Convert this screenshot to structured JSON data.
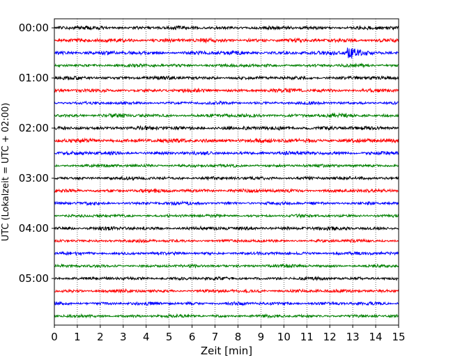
{
  "chart_data": {
    "type": "line",
    "title": "",
    "xlabel": "Zeit  [min]",
    "ylabel": "UTC (Lokalzeit = UTC + 02:00)",
    "xlim": [
      0,
      15
    ],
    "x_ticks": [
      0,
      1,
      2,
      3,
      4,
      5,
      6,
      7,
      8,
      9,
      10,
      11,
      12,
      13,
      14,
      15
    ],
    "x_tick_labels": [
      "0",
      "1",
      "2",
      "3",
      "4",
      "5",
      "6",
      "7",
      "8",
      "9",
      "10",
      "11",
      "12",
      "13",
      "14",
      "15"
    ],
    "y_tick_labels": [
      "00:00",
      "01:00",
      "02:00",
      "03:00",
      "04:00",
      "05:00"
    ],
    "trace_interval_minutes": 15,
    "grid": {
      "x": "dotted",
      "y": false
    },
    "colors_cycle": [
      "#000000",
      "#ff0000",
      "#0000ff",
      "#008000"
    ],
    "series": [
      {
        "start": "00:00",
        "color": "#000000",
        "amplitude": 0.35
      },
      {
        "start": "00:15",
        "color": "#ff0000",
        "amplitude": 0.4
      },
      {
        "start": "00:30",
        "color": "#0000ff",
        "amplitude": 0.38,
        "event": {
          "x": 12.8,
          "amplitude": 1.0
        }
      },
      {
        "start": "00:45",
        "color": "#008000",
        "amplitude": 0.32
      },
      {
        "start": "01:00",
        "color": "#000000",
        "amplitude": 0.35
      },
      {
        "start": "01:15",
        "color": "#ff0000",
        "amplitude": 0.36
      },
      {
        "start": "01:30",
        "color": "#0000ff",
        "amplitude": 0.3
      },
      {
        "start": "01:45",
        "color": "#008000",
        "amplitude": 0.36
      },
      {
        "start": "02:00",
        "color": "#000000",
        "amplitude": 0.38
      },
      {
        "start": "02:15",
        "color": "#ff0000",
        "amplitude": 0.42
      },
      {
        "start": "02:30",
        "color": "#0000ff",
        "amplitude": 0.36
      },
      {
        "start": "02:45",
        "color": "#008000",
        "amplitude": 0.3
      },
      {
        "start": "03:00",
        "color": "#000000",
        "amplitude": 0.34
      },
      {
        "start": "03:15",
        "color": "#ff0000",
        "amplitude": 0.34
      },
      {
        "start": "03:30",
        "color": "#0000ff",
        "amplitude": 0.32
      },
      {
        "start": "03:45",
        "color": "#008000",
        "amplitude": 0.3
      },
      {
        "start": "04:00",
        "color": "#000000",
        "amplitude": 0.36
      },
      {
        "start": "04:15",
        "color": "#ff0000",
        "amplitude": 0.3
      },
      {
        "start": "04:30",
        "color": "#0000ff",
        "amplitude": 0.32
      },
      {
        "start": "04:45",
        "color": "#008000",
        "amplitude": 0.3
      },
      {
        "start": "05:00",
        "color": "#000000",
        "amplitude": 0.32
      },
      {
        "start": "05:15",
        "color": "#ff0000",
        "amplitude": 0.34
      },
      {
        "start": "05:30",
        "color": "#0000ff",
        "amplitude": 0.32
      },
      {
        "start": "05:45",
        "color": "#008000",
        "amplitude": 0.3
      }
    ]
  }
}
